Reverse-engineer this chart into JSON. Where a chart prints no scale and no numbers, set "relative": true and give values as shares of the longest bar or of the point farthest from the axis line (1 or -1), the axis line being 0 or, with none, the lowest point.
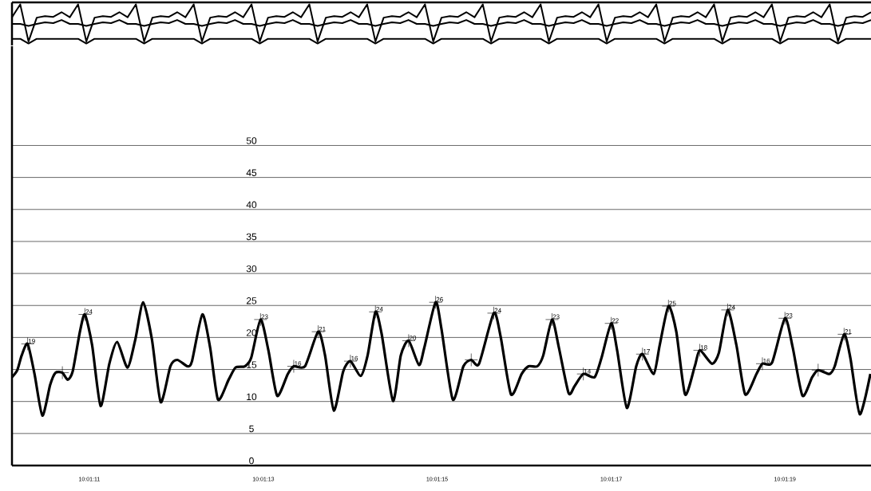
{
  "chart_data": [
    {
      "type": "line",
      "relative": true,
      "categories": [
        null,
        null,
        null,
        null,
        null,
        null,
        null,
        null,
        null,
        null,
        null,
        null,
        null,
        null,
        null,
        null,
        null,
        null,
        null,
        null,
        null,
        null,
        null,
        null,
        null,
        null,
        null,
        null,
        null,
        null,
        null,
        null,
        null,
        null,
        null,
        null,
        null,
        null,
        null,
        null,
        null,
        null,
        null,
        null,
        null,
        null,
        null,
        null,
        null,
        null,
        null,
        null,
        null,
        null,
        null,
        null,
        null,
        null,
        null,
        null,
        null,
        null,
        null,
        null,
        null,
        null,
        null,
        null,
        null,
        null,
        null,
        null,
        null,
        null,
        null,
        null,
        null,
        null,
        null,
        null,
        null,
        null,
        null,
        null,
        null,
        null,
        null,
        null,
        null,
        null,
        null,
        null,
        null,
        null,
        null,
        null,
        null,
        null,
        null,
        null,
        null,
        null,
        null,
        null,
        null
      ],
      "series": [
        {
          "color": "#000000",
          "values": [
            0.67,
            1,
            0.05,
            0.66,
            0.7,
            0.68,
            0.8,
            0.67,
            1,
            0.05,
            0.66,
            0.7,
            0.68,
            0.8,
            0.67,
            1,
            0.05,
            0.66,
            0.7,
            0.68,
            0.8,
            0.67,
            1,
            0.05,
            0.66,
            0.7,
            0.68,
            0.8,
            0.67,
            1,
            0.05,
            0.66,
            0.7,
            0.68,
            0.8,
            0.67,
            1,
            0.05,
            0.66,
            0.7,
            0.68,
            0.8,
            0.67,
            1,
            0.05,
            0.66,
            0.7,
            0.68,
            0.8,
            0.67,
            1,
            0.05,
            0.66,
            0.7,
            0.68,
            0.8,
            0.67,
            1,
            0.05,
            0.66,
            0.7,
            0.68,
            0.8,
            0.67,
            1,
            0.05,
            0.66,
            0.7,
            0.68,
            0.8,
            0.67,
            1,
            0.05,
            0.66,
            0.7,
            0.68,
            0.8,
            0.67,
            1,
            0.05,
            0.66,
            0.7,
            0.68,
            0.8,
            0.67,
            1,
            0.05,
            0.66,
            0.7,
            0.68,
            0.8,
            0.67,
            1,
            0.05,
            0.66,
            0.7,
            0.68,
            0.8,
            0.67,
            1,
            0.05,
            0.66,
            0.7,
            0.68,
            0.8
          ]
        },
        {
          "color": "#000000",
          "values": [
            0.5,
            0.5,
            0.45,
            0.5,
            0.54,
            0.52,
            0.6,
            0.5,
            0.5,
            0.45,
            0.5,
            0.54,
            0.52,
            0.6,
            0.5,
            0.5,
            0.45,
            0.5,
            0.54,
            0.52,
            0.6,
            0.5,
            0.5,
            0.45,
            0.5,
            0.54,
            0.52,
            0.6,
            0.5,
            0.5,
            0.45,
            0.5,
            0.54,
            0.52,
            0.6,
            0.5,
            0.5,
            0.45,
            0.5,
            0.54,
            0.52,
            0.6,
            0.5,
            0.5,
            0.45,
            0.5,
            0.54,
            0.52,
            0.6,
            0.5,
            0.5,
            0.45,
            0.5,
            0.54,
            0.52,
            0.6,
            0.5,
            0.5,
            0.45,
            0.5,
            0.54,
            0.52,
            0.6,
            0.5,
            0.5,
            0.45,
            0.5,
            0.54,
            0.52,
            0.6,
            0.5,
            0.5,
            0.45,
            0.5,
            0.54,
            0.52,
            0.6,
            0.5,
            0.5,
            0.45,
            0.5,
            0.54,
            0.52,
            0.6,
            0.5,
            0.5,
            0.45,
            0.5,
            0.54,
            0.52,
            0.6,
            0.5,
            0.5,
            0.45,
            0.5,
            0.54,
            0.52,
            0.6,
            0.5,
            0.5,
            0.45,
            0.5,
            0.54,
            0.52,
            0.6
          ]
        },
        {
          "color": "#000000",
          "values": [
            0.12,
            0.12,
            0,
            0.12,
            0.12,
            0.12,
            0.12,
            0.12,
            0.12,
            0,
            0.12,
            0.12,
            0.12,
            0.12,
            0.12,
            0.12,
            0,
            0.12,
            0.12,
            0.12,
            0.12,
            0.12,
            0.12,
            0,
            0.12,
            0.12,
            0.12,
            0.12,
            0.12,
            0.12,
            0,
            0.12,
            0.12,
            0.12,
            0.12,
            0.12,
            0.12,
            0,
            0.12,
            0.12,
            0.12,
            0.12,
            0.12,
            0.12,
            0,
            0.12,
            0.12,
            0.12,
            0.12,
            0.12,
            0.12,
            0,
            0.12,
            0.12,
            0.12,
            0.12,
            0.12,
            0.12,
            0,
            0.12,
            0.12,
            0.12,
            0.12,
            0.12,
            0.12,
            0,
            0.12,
            0.12,
            0.12,
            0.12,
            0.12,
            0.12,
            0,
            0.12,
            0.12,
            0.12,
            0.12,
            0.12,
            0.12,
            0,
            0.12,
            0.12,
            0.12,
            0.12,
            0.12,
            0.12,
            0,
            0.12,
            0.12,
            0.12,
            0.12,
            0.12,
            0.12,
            0,
            0.12,
            0.12,
            0.12,
            0.12,
            0.12,
            0.12,
            0,
            0.12,
            0.12,
            0.12,
            0.12
          ]
        }
      ]
    },
    {
      "type": "line",
      "xlim": [
        10.019475,
        10.022219
      ],
      "ylim": [
        0,
        65.5
      ],
      "grid": "y",
      "xticks": [
        {
          "value": 10.019722,
          "label": "10:01:11"
        },
        {
          "value": 10.020278,
          "label": "10:01:13"
        },
        {
          "value": 10.020833,
          "label": "10:01:15"
        },
        {
          "value": 10.021389,
          "label": "10:01:17"
        },
        {
          "value": 10.021944,
          "label": "10:01:19"
        }
      ],
      "yticks": [
        0,
        5,
        10,
        15,
        20,
        25,
        30,
        35,
        40,
        45,
        50
      ],
      "series": [
        {
          "color": "#000000",
          "x": [
            10.019475,
            10.019492,
            10.019506,
            10.019525,
            10.019547,
            10.019572,
            10.019597,
            10.019614,
            10.019636,
            10.019653,
            10.019669,
            10.019692,
            10.019708,
            10.019731,
            10.019758,
            10.019786,
            10.019811,
            10.019844,
            10.019869,
            10.019894,
            10.019922,
            10.01995,
            10.019981,
            10.020003,
            10.020036,
            10.02005,
            10.020083,
            10.020108,
            10.020133,
            10.020167,
            10.020189,
            10.020219,
            10.020239,
            10.020269,
            10.020294,
            10.020322,
            10.020356,
            10.020375,
            10.020411,
            10.020453,
            10.020475,
            10.020503,
            10.020533,
            10.020556,
            10.020589,
            10.020611,
            10.020636,
            10.020656,
            10.020692,
            10.020717,
            10.020742,
            10.020775,
            10.020792,
            10.020828,
            10.020847,
            10.020883,
            10.020917,
            10.020942,
            10.020967,
            10.021014,
            10.021036,
            10.021069,
            10.021103,
            10.021125,
            10.021153,
            10.021172,
            10.0212,
            10.021222,
            10.021253,
            10.021272,
            10.0213,
            10.021336,
            10.021358,
            10.021389,
            10.021408,
            10.021439,
            10.021469,
            10.021489,
            10.021525,
            10.021544,
            10.021572,
            10.021597,
            10.021625,
            10.021656,
            10.021672,
            10.021711,
            10.021733,
            10.021761,
            10.021789,
            10.021817,
            10.021853,
            10.021872,
            10.021903,
            10.021944,
            10.021969,
            10.022,
            10.022031,
            10.02205,
            10.022086,
            10.022103,
            10.022133,
            10.022153,
            10.022183,
            10.022217
          ],
          "values": [
            13.8,
            14.9,
            17.2,
            19.0,
            14.3,
            7.8,
            12.6,
            14.5,
            14.5,
            13.4,
            14.7,
            20.9,
            23.6,
            18.8,
            9.3,
            15.9,
            19.3,
            15.3,
            19.7,
            25.5,
            19.7,
            9.9,
            15.5,
            16.5,
            15.5,
            16.3,
            23.6,
            18.4,
            10.3,
            13.4,
            15.3,
            15.5,
            16.8,
            22.8,
            18.0,
            10.9,
            14.3,
            15.5,
            15.5,
            20.9,
            17.2,
            8.6,
            14.7,
            16.3,
            14.0,
            17.2,
            24.0,
            20.5,
            10.1,
            17.2,
            19.5,
            15.7,
            18.4,
            25.5,
            21.3,
            10.3,
            15.5,
            16.5,
            15.9,
            23.8,
            20.1,
            11.1,
            14.3,
            15.5,
            15.5,
            17.2,
            22.8,
            18.4,
            11.3,
            12.4,
            14.3,
            13.8,
            16.8,
            22.2,
            18.0,
            9.0,
            15.5,
            17.4,
            14.3,
            18.8,
            24.9,
            20.9,
            11.1,
            15.5,
            18.0,
            15.9,
            17.6,
            24.3,
            18.8,
            11.1,
            14.3,
            15.9,
            16.1,
            23.0,
            18.4,
            10.9,
            13.8,
            14.9,
            14.3,
            15.5,
            20.5,
            16.8,
            8.0,
            14.3
          ]
        },
        {
          "type": "scatter",
          "marker": "cross",
          "color": "#000000",
          "x": [
            10.019525,
            10.019636,
            10.019708,
            10.020269,
            10.020375,
            10.020453,
            10.020556,
            10.020636,
            10.020742,
            10.020828,
            10.020942,
            10.021014,
            10.0212,
            10.0213,
            10.021389,
            10.021489,
            10.021572,
            10.021672,
            10.021761,
            10.021872,
            10.021944,
            10.02205,
            10.022133
          ],
          "values": [
            19.0,
            14.5,
            23.6,
            22.8,
            15.5,
            20.9,
            16.3,
            24.0,
            19.5,
            25.5,
            16.5,
            23.8,
            22.8,
            14.3,
            22.2,
            17.4,
            24.9,
            18.0,
            24.3,
            15.9,
            23.0,
            14.9,
            20.5
          ],
          "value_labels": [
            "19",
            null,
            "24",
            "23",
            "16",
            "21",
            "16",
            "24",
            "20",
            "26",
            null,
            "24",
            "23",
            "14",
            "22",
            "17",
            "25",
            "18",
            "24",
            "16",
            "23",
            null,
            "21"
          ]
        }
      ]
    }
  ]
}
